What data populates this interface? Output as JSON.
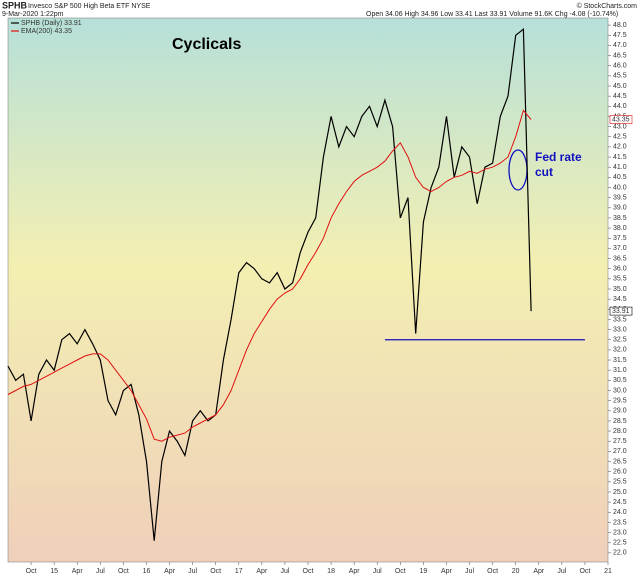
{
  "chart_data": {
    "type": "line",
    "title": "SPHB",
    "subtitle": "Invesco S&P 500 High Beta ETF  NYSE",
    "date": "9-Mar-2020 1:22pm",
    "quote": "Open 34.06  High 34.96  Low 33.41  Last 33.91  Volume 91.6K  Chg -4.08 (-10.74%)",
    "source": "© StockCharts.com",
    "annotations": [
      "Cyclicals",
      "Fed rate",
      "cut"
    ],
    "hline": {
      "value": 32.5,
      "x": [
        "2018-08",
        "2020-10"
      ],
      "color": "#1010c0"
    },
    "xlim": [
      "2014-07",
      "2021-01"
    ],
    "ylim": [
      21.55,
      48.35
    ],
    "grid": false,
    "legend": "top-left",
    "x": [
      "2014-07",
      "2014-08",
      "2014-09",
      "2014-10",
      "2014-11",
      "2014-12",
      "2015-01",
      "2015-02",
      "2015-03",
      "2015-04",
      "2015-05",
      "2015-06",
      "2015-07",
      "2015-08",
      "2015-09",
      "2015-10",
      "2015-11",
      "2015-12",
      "2016-01",
      "2016-02",
      "2016-03",
      "2016-04",
      "2016-05",
      "2016-06",
      "2016-07",
      "2016-08",
      "2016-09",
      "2016-10",
      "2016-11",
      "2016-12",
      "2017-01",
      "2017-02",
      "2017-03",
      "2017-04",
      "2017-05",
      "2017-06",
      "2017-07",
      "2017-08",
      "2017-09",
      "2017-10",
      "2017-11",
      "2017-12",
      "2018-01",
      "2018-02",
      "2018-03",
      "2018-04",
      "2018-05",
      "2018-06",
      "2018-07",
      "2018-08",
      "2018-09",
      "2018-10",
      "2018-11",
      "2018-12",
      "2019-01",
      "2019-02",
      "2019-03",
      "2019-04",
      "2019-05",
      "2019-06",
      "2019-07",
      "2019-08",
      "2019-09",
      "2019-10",
      "2019-11",
      "2019-12",
      "2020-01",
      "2020-02",
      "2020-03"
    ],
    "series": [
      {
        "name": "SPHB (Daily) 33.91",
        "color": "#000000",
        "last_value": 33.91,
        "values": [
          31.2,
          30.5,
          30.8,
          28.5,
          30.8,
          31.5,
          31.0,
          32.5,
          32.8,
          32.3,
          33.0,
          32.3,
          31.5,
          29.5,
          28.8,
          30.0,
          30.3,
          28.8,
          26.5,
          22.6,
          26.5,
          28.0,
          27.5,
          26.8,
          28.5,
          29.0,
          28.5,
          28.8,
          31.5,
          33.5,
          35.8,
          36.3,
          36.0,
          35.5,
          35.3,
          35.8,
          35.0,
          35.3,
          36.8,
          37.8,
          38.5,
          41.5,
          43.5,
          42.0,
          43.0,
          42.5,
          43.5,
          44.0,
          43.0,
          44.3,
          43.0,
          38.5,
          39.5,
          32.8,
          38.3,
          40.0,
          41.0,
          43.5,
          40.5,
          42.0,
          41.5,
          39.2,
          41.0,
          41.2,
          43.5,
          44.5,
          47.5,
          47.8,
          33.91
        ]
      },
      {
        "name": "EMA(200) 43.35",
        "color": "#e01010",
        "last_value": 43.35,
        "values": [
          29.8,
          30.0,
          30.2,
          30.3,
          30.5,
          30.7,
          30.9,
          31.1,
          31.3,
          31.5,
          31.7,
          31.8,
          31.8,
          31.5,
          31.0,
          30.5,
          30.0,
          29.3,
          28.6,
          27.6,
          27.5,
          27.7,
          27.8,
          27.9,
          28.2,
          28.4,
          28.6,
          28.8,
          29.3,
          30.0,
          31.0,
          32.0,
          32.8,
          33.4,
          34.0,
          34.5,
          34.8,
          35.0,
          35.5,
          36.2,
          36.8,
          37.5,
          38.5,
          39.2,
          39.8,
          40.3,
          40.6,
          40.8,
          41.0,
          41.3,
          41.8,
          42.2,
          41.5,
          40.5,
          40.0,
          39.8,
          40.0,
          40.3,
          40.5,
          40.6,
          40.8,
          40.7,
          40.9,
          41.0,
          41.2,
          41.5,
          42.5,
          43.8,
          43.35
        ]
      }
    ],
    "xticks": [
      {
        "value": "2014-10",
        "label": "Oct"
      },
      {
        "value": "2015-01",
        "label": "15"
      },
      {
        "value": "2015-04",
        "label": "Apr"
      },
      {
        "value": "2015-07",
        "label": "Jul"
      },
      {
        "value": "2015-10",
        "label": "Oct"
      },
      {
        "value": "2016-01",
        "label": "16"
      },
      {
        "value": "2016-04",
        "label": "Apr"
      },
      {
        "value": "2016-07",
        "label": "Jul"
      },
      {
        "value": "2016-10",
        "label": "Oct"
      },
      {
        "value": "2017-01",
        "label": "17"
      },
      {
        "value": "2017-04",
        "label": "Apr"
      },
      {
        "value": "2017-07",
        "label": "Jul"
      },
      {
        "value": "2017-10",
        "label": "Oct"
      },
      {
        "value": "2018-01",
        "label": "18"
      },
      {
        "value": "2018-04",
        "label": "Apr"
      },
      {
        "value": "2018-07",
        "label": "Jul"
      },
      {
        "value": "2018-10",
        "label": "Oct"
      },
      {
        "value": "2019-01",
        "label": "19"
      },
      {
        "value": "2019-04",
        "label": "Apr"
      },
      {
        "value": "2019-07",
        "label": "Jul"
      },
      {
        "value": "2019-10",
        "label": "Oct"
      },
      {
        "value": "2020-01",
        "label": "20"
      },
      {
        "value": "2020-04",
        "label": "Apr"
      },
      {
        "value": "2020-07",
        "label": "Jul"
      },
      {
        "value": "2020-10",
        "label": "Oct"
      },
      {
        "value": "2021-01",
        "label": "21"
      }
    ],
    "yticks": [
      {
        "value": 22,
        "label": "22.0"
      },
      22.5,
      {
        "value": 23,
        "label": "23.0"
      },
      23.5,
      {
        "value": 24,
        "label": "24.0"
      },
      24.5,
      {
        "value": 25,
        "label": "25.0"
      },
      25.5,
      {
        "value": 26,
        "label": "26.0"
      },
      26.5,
      {
        "value": 27,
        "label": "27.0"
      },
      27.5,
      {
        "value": 28,
        "label": "28.0"
      },
      28.5,
      {
        "value": 29,
        "label": "29.0"
      },
      29.5,
      {
        "value": 30,
        "label": "30.0"
      },
      30.5,
      {
        "value": 31,
        "label": "31.0"
      },
      31.5,
      {
        "value": 32,
        "label": "32.0"
      },
      32.5,
      {
        "value": 33,
        "label": "33.0"
      },
      33.5,
      {
        "value": 34,
        "label": "34.0"
      },
      34.5,
      {
        "value": 35,
        "label": "35.0"
      },
      35.5,
      {
        "value": 36,
        "label": "36.0"
      },
      36.5,
      {
        "value": 37,
        "label": "37.0"
      },
      37.5,
      {
        "value": 38,
        "label": "38.0"
      },
      38.5,
      {
        "value": 39,
        "label": "39.0"
      },
      39.5,
      {
        "value": 40,
        "label": "40.0"
      },
      40.5,
      {
        "value": 41,
        "label": "41.0"
      },
      41.5,
      {
        "value": 42,
        "label": "42.0"
      },
      42.5,
      {
        "value": 43,
        "label": "43.0"
      },
      43.5,
      {
        "value": 44,
        "label": "44.0"
      },
      44.5,
      {
        "value": 45,
        "label": "45.0"
      },
      45.5,
      {
        "value": 46,
        "label": "46.0"
      },
      46.5,
      {
        "value": 47,
        "label": "47.0"
      },
      47.5,
      {
        "value": 48,
        "label": "48.0"
      }
    ]
  }
}
